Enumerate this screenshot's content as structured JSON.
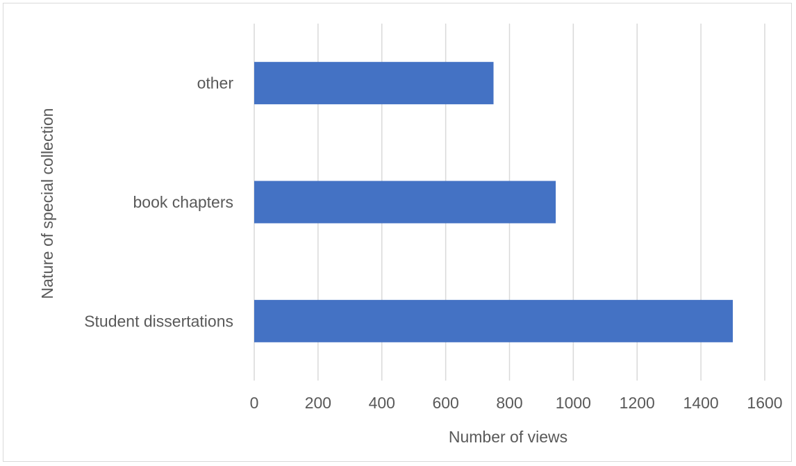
{
  "chart_data": {
    "type": "bar",
    "orientation": "horizontal",
    "categories": [
      "Student dissertations",
      "book chapters",
      "other"
    ],
    "values": [
      1500,
      945,
      750
    ],
    "xlabel": "Number of views",
    "ylabel": "Nature of special collection",
    "xlim": [
      0,
      1600
    ],
    "xticks": [
      "0",
      "200",
      "400",
      "600",
      "800",
      "1000",
      "1200",
      "1400",
      "1600"
    ],
    "grid": "vertical",
    "legend": "none",
    "colors": {
      "bar": "#4472c4",
      "grid": "#d9d9d9",
      "text": "#595959"
    }
  }
}
